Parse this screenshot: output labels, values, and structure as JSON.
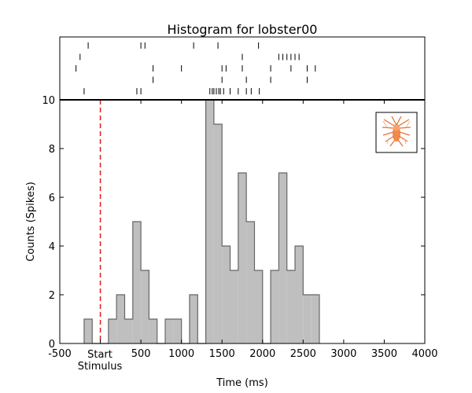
{
  "chart_data": {
    "type": "bar",
    "title": "Histogram for lobster00",
    "xlabel": "Time (ms)",
    "ylabel": "Counts (Spikes)",
    "xlim": [
      -500,
      4000
    ],
    "ylim": [
      0,
      10
    ],
    "x_ticks": [
      "-500",
      "500",
      "1000",
      "1500",
      "2000",
      "2500",
      "3000",
      "3500",
      "4000"
    ],
    "x_tick_values": [
      -500,
      500,
      1000,
      1500,
      2000,
      2500,
      3000,
      3500,
      4000
    ],
    "y_ticks": [
      "0",
      "2",
      "4",
      "6",
      "8",
      "10"
    ],
    "y_tick_values": [
      0,
      2,
      4,
      6,
      8,
      10
    ],
    "stimulus_marker": {
      "x": 0,
      "label_start": "Start",
      "label_stimulus": "Stimulus",
      "color": "#e31a1c"
    },
    "bin_width": 100,
    "bin_starts": [
      -200,
      -100,
      0,
      100,
      200,
      300,
      400,
      500,
      600,
      700,
      800,
      900,
      1000,
      1100,
      1200,
      1300,
      1400,
      1500,
      1600,
      1700,
      1800,
      1900,
      2000,
      2100,
      2200,
      2300,
      2400,
      2500,
      2600
    ],
    "values": [
      1,
      0,
      0,
      1,
      2,
      1,
      5,
      3,
      1,
      0,
      1,
      1,
      0,
      2,
      0,
      10,
      9,
      4,
      3,
      7,
      5,
      3,
      0,
      3,
      7,
      3,
      4,
      2,
      2
    ],
    "raster_trials": [
      [
        -150,
        500,
        550,
        1150,
        1450,
        1950
      ],
      [
        -250,
        1750,
        2200,
        2250,
        2300,
        2350,
        2400,
        2450
      ],
      [
        -300,
        650,
        1000,
        1500,
        1550,
        1750,
        2100,
        2350,
        2550,
        2650
      ],
      [
        650,
        1500,
        1800,
        2100,
        2550
      ],
      [
        -200,
        450,
        500,
        1350,
        1380,
        1400,
        1430,
        1460,
        1480,
        1520,
        1600,
        1700,
        1800,
        1860,
        1960
      ]
    ],
    "bar_color": "#bfbfbf",
    "edge_color": "#666666",
    "grid": false,
    "legend": "none",
    "inset_icon": "lobster-icon"
  }
}
